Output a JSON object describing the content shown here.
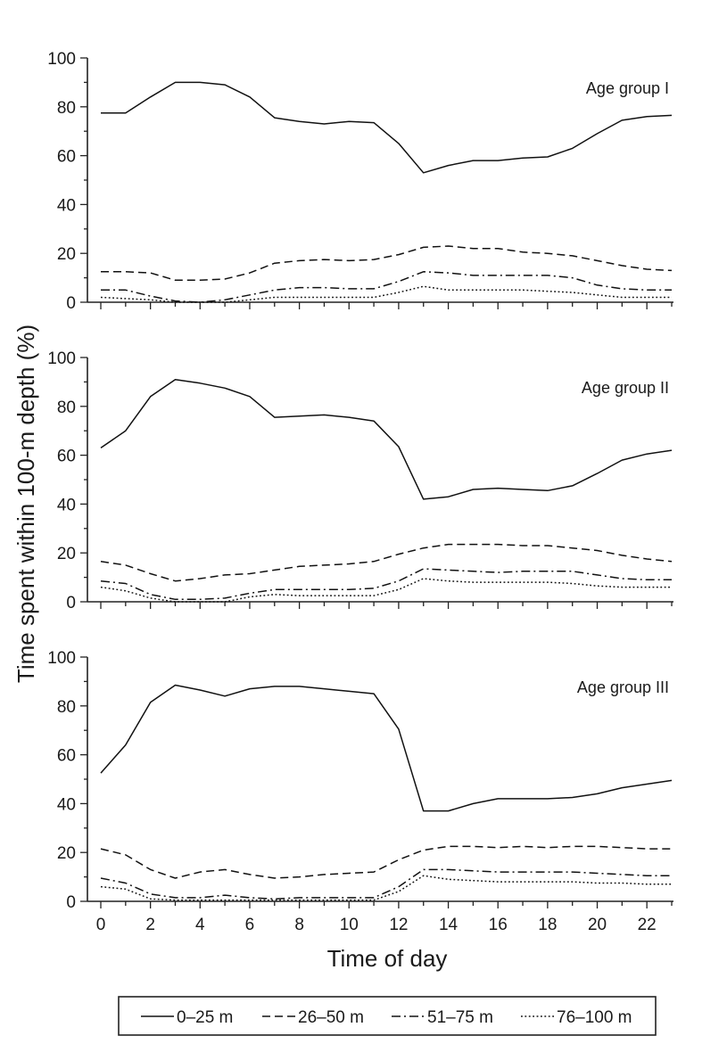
{
  "chart_data": {
    "type": "line",
    "ylabel": "Time spent within 100-m depth (%)",
    "xlabel": "Time of day",
    "ylim": [
      0,
      100
    ],
    "xlim": [
      0,
      23
    ],
    "yticks": [
      0,
      20,
      40,
      60,
      80,
      100
    ],
    "xticks": [
      0,
      2,
      4,
      6,
      8,
      10,
      12,
      14,
      16,
      18,
      20,
      22
    ],
    "x": [
      0,
      1,
      2,
      3,
      4,
      5,
      6,
      7,
      8,
      9,
      10,
      11,
      12,
      13,
      14,
      15,
      16,
      17,
      18,
      19,
      20,
      21,
      22,
      23
    ],
    "grid": false,
    "legend_position": "bottom",
    "legend": [
      {
        "label": "0–25 m",
        "style": "solid"
      },
      {
        "label": "26–50 m",
        "style": "dashed"
      },
      {
        "label": "51–75 m",
        "style": "dash-dot"
      },
      {
        "label": "76–100 m",
        "style": "dotted"
      }
    ],
    "panels": [
      {
        "label": "Age group I",
        "series": [
          {
            "name": "0–25 m",
            "values": [
              77.5,
              77.5,
              84,
              90,
              90,
              89,
              84,
              75.5,
              74,
              73,
              74,
              73.5,
              65,
              53,
              56,
              58,
              58,
              59,
              59.5,
              63,
              69,
              74.5,
              76,
              76.5
            ]
          },
          {
            "name": "26–50 m",
            "values": [
              12.5,
              12.5,
              12,
              9,
              9,
              9.5,
              12,
              16,
              17,
              17.5,
              17,
              17.5,
              19.5,
              22.5,
              23,
              22,
              22,
              20.5,
              20,
              19,
              17,
              15,
              13.5,
              13
            ]
          },
          {
            "name": "51–75 m",
            "values": [
              5,
              5,
              2.5,
              0.5,
              0,
              1,
              3,
              5,
              6,
              6,
              5.5,
              5.5,
              8.5,
              12.5,
              12,
              11,
              11,
              11,
              11,
              10,
              7,
              5.5,
              5,
              5
            ]
          },
          {
            "name": "76–100 m",
            "values": [
              2,
              1.5,
              1,
              0,
              0,
              0,
              1,
              2,
              2,
              2,
              2,
              2,
              4,
              6.5,
              5,
              5,
              5,
              5,
              4.5,
              4,
              3,
              2,
              2,
              2
            ]
          }
        ]
      },
      {
        "label": "Age group II",
        "series": [
          {
            "name": "0–25 m",
            "values": [
              63,
              70,
              84,
              91,
              89.5,
              87.5,
              84,
              75.5,
              76,
              76.5,
              75.5,
              74,
              63.5,
              42,
              43,
              46,
              46.5,
              46,
              45.5,
              47.5,
              52.5,
              58,
              60.5,
              62
            ]
          },
          {
            "name": "26–50 m",
            "values": [
              16.5,
              15,
              11.5,
              8.5,
              9.5,
              11,
              11.5,
              13,
              14.5,
              15,
              15.5,
              16.5,
              19.5,
              22,
              23.5,
              23.5,
              23.5,
              23,
              23,
              22,
              21,
              19,
              17.5,
              16.5
            ]
          },
          {
            "name": "51–75 m",
            "values": [
              8.5,
              7.5,
              3,
              1,
              1,
              1.5,
              3.5,
              5,
              5,
              5,
              5,
              5.5,
              8.5,
              13.5,
              13,
              12.5,
              12,
              12.5,
              12.5,
              12.5,
              11,
              9.5,
              9,
              9
            ]
          },
          {
            "name": "76–100 m",
            "values": [
              6,
              4.5,
              1.5,
              0,
              0,
              0,
              2,
              3,
              2.5,
              2.5,
              2.5,
              2.5,
              5,
              9.5,
              8.5,
              8,
              8,
              8,
              8,
              7.5,
              6.5,
              6,
              6,
              6
            ]
          }
        ]
      },
      {
        "label": "Age group III",
        "series": [
          {
            "name": "0–25 m",
            "values": [
              52.5,
              64,
              81.5,
              88.5,
              86.5,
              84,
              87,
              88,
              88,
              87,
              86,
              85,
              70.5,
              37,
              37,
              40,
              42,
              42,
              42,
              42.5,
              44,
              46.5,
              48,
              49.5
            ]
          },
          {
            "name": "26–50 m",
            "values": [
              21.5,
              19,
              13,
              9.5,
              12,
              13,
              11,
              9.5,
              10,
              11,
              11.5,
              12,
              17,
              21,
              22.5,
              22.5,
              22,
              22.5,
              22,
              22.5,
              22.5,
              22,
              21.5,
              21.5
            ]
          },
          {
            "name": "51–75 m",
            "values": [
              9.5,
              7.5,
              3,
              1.5,
              1.5,
              2.5,
              1.5,
              1,
              1.5,
              1.5,
              1.5,
              1.5,
              6,
              13,
              13,
              12.5,
              12,
              12,
              12,
              12,
              11.5,
              11,
              10.5,
              10.5
            ]
          },
          {
            "name": "76–100 m",
            "values": [
              6,
              5,
              1,
              0.5,
              0.5,
              0.5,
              0.5,
              0.5,
              0.5,
              0.5,
              0.5,
              0.5,
              4,
              10.5,
              9,
              8.5,
              8,
              8,
              8,
              8,
              7.5,
              7.5,
              7,
              7
            ]
          }
        ]
      }
    ]
  }
}
